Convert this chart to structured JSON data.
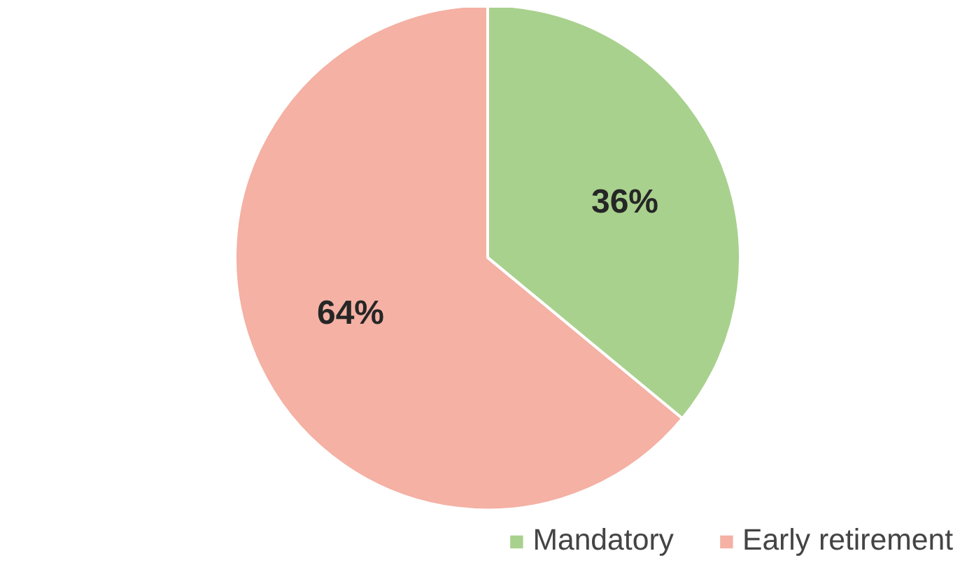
{
  "chart_data": {
    "type": "pie",
    "categories": [
      "Mandatory",
      "Early retirement"
    ],
    "values": [
      36,
      64
    ],
    "colors": [
      "#a9d18e",
      "#f4b1a4"
    ],
    "data_labels": true,
    "value_labels": [
      "36%",
      "64%"
    ],
    "legend": "bottom right"
  }
}
